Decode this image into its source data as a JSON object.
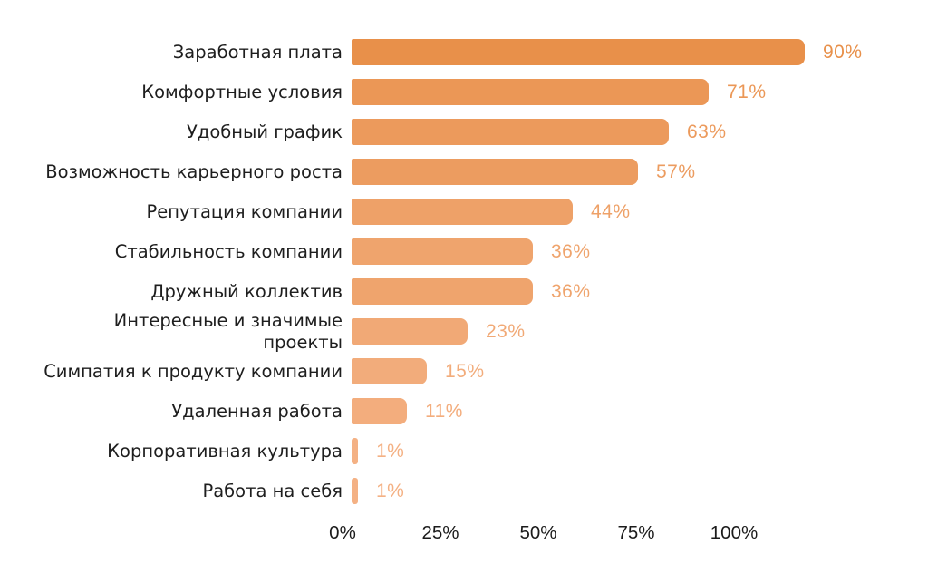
{
  "chart_data": {
    "type": "bar",
    "orientation": "horizontal",
    "title": "",
    "xlabel": "",
    "ylabel": "",
    "categories": [
      "Заработная плата",
      "Комфортные условия",
      "Удобный график",
      "Возможность карьерного роста",
      "Репутация компании",
      "Стабильность компании",
      "Дружный коллектив",
      "Интересные и значимые\nпроекты",
      "Симпатия к продукту компании",
      "Удаленная работа",
      "Корпоративная культура",
      "Работа на себя"
    ],
    "values": [
      90,
      71,
      63,
      57,
      44,
      36,
      36,
      23,
      15,
      11,
      1,
      1
    ],
    "value_labels": [
      "90%",
      "71%",
      "63%",
      "57%",
      "44%",
      "36%",
      "36%",
      "23%",
      "15%",
      "11%",
      "1%",
      "1%"
    ],
    "x_ticks": [
      "0%",
      "25%",
      "50%",
      "75%",
      "100%"
    ],
    "xlim": [
      0,
      100
    ],
    "grid": false,
    "legend": false,
    "colors": {
      "bar_high_value": "#E8904A",
      "bar_low_value": "#F4B184",
      "category_text": "#1E1E1E",
      "axis_text": "#1B1B1B",
      "background": "#FFFFFF"
    }
  }
}
